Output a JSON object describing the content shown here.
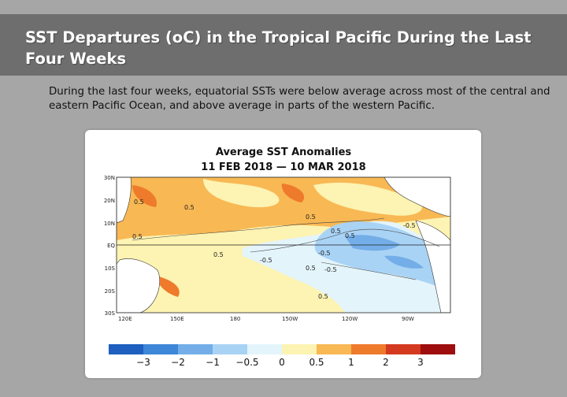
{
  "slide": {
    "title": "SST Departures (oC) in the Tropical Pacific During the Last Four Weeks",
    "description": "During the last four weeks, equatorial SSTs were below average across most of the central and eastern Pacific Ocean, and above average in parts of the western Pacific."
  },
  "map": {
    "title": "Average SST Anomalies",
    "subtitle": "11 FEB 2018 — 10 MAR 2018",
    "lat_labels": [
      "30N",
      "20N",
      "10N",
      "EQ",
      "10S",
      "20S",
      "30S"
    ],
    "lon_labels": [
      "120E",
      "150E",
      "180",
      "150W",
      "120W",
      "90W"
    ],
    "contour_labels": [
      "0.5",
      "0.5",
      "0.5",
      "0.5",
      "0.5",
      "0.5",
      "-0.5",
      "0.5",
      "0.5",
      "-0.5",
      "-0.5",
      "-0.5",
      "0.5"
    ],
    "colorbar": {
      "tick_labels": [
        "−3",
        "−2",
        "−1",
        "−0.5",
        "0",
        "0.5",
        "1",
        "2",
        "3"
      ],
      "colors": [
        "#1e5fbf",
        "#3d86d8",
        "#74aee8",
        "#a9d3f5",
        "#e3f4fb",
        "#fdf3b2",
        "#f8b853",
        "#ee7a2c",
        "#d43a1f",
        "#9e0e0e"
      ]
    },
    "palette": {
      "warm_light": "#fdf3b2",
      "warm": "#f8b853",
      "warm_strong": "#ee7a2c",
      "hot": "#d43a1f",
      "cool_light": "#e3f4fb",
      "cool": "#a9d3f5",
      "cool_strong": "#74aee8",
      "land": "#ffffff"
    }
  }
}
